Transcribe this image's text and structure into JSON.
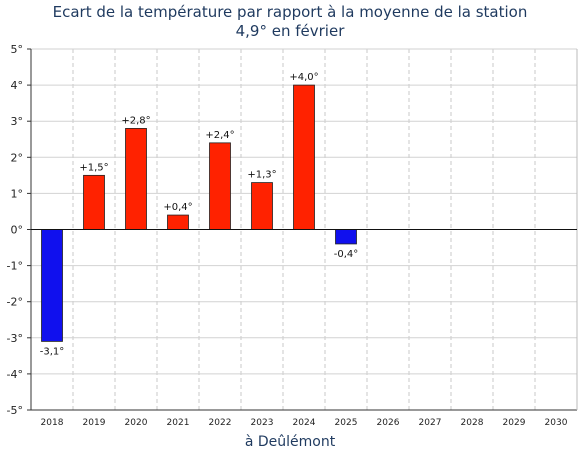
{
  "title_line1": "Ecart de la température par rapport à la moyenne de la station",
  "title_line2": "4,9° en février",
  "xlabel": "à Deûlémont",
  "chart_data": {
    "type": "bar",
    "title": "Ecart de la température par rapport à la moyenne de la station 4,9° en février",
    "xlabel": "à Deûlémont",
    "ylabel": "",
    "ylim": [
      -5,
      5
    ],
    "yticks": [
      "5°",
      "4°",
      "3°",
      "2°",
      "1°",
      "0°",
      "-1°",
      "-2°",
      "-3°",
      "-4°",
      "-5°"
    ],
    "categories": [
      "2018",
      "2019",
      "2020",
      "2021",
      "2022",
      "2023",
      "2024",
      "2025",
      "2026",
      "2027",
      "2028",
      "2029",
      "2030"
    ],
    "values": [
      -3.1,
      1.5,
      2.8,
      0.4,
      2.4,
      1.3,
      4.0,
      -0.4,
      null,
      null,
      null,
      null,
      null
    ],
    "data_labels": [
      "-3,1°",
      "+1,5°",
      "+2,8°",
      "+0,4°",
      "+2,4°",
      "+1,3°",
      "+4,0°",
      "-0,4°",
      "",
      "",
      "",
      "",
      ""
    ],
    "colors": {
      "positive": "#ff2200",
      "negative": "#1010ee"
    },
    "grid": true
  }
}
